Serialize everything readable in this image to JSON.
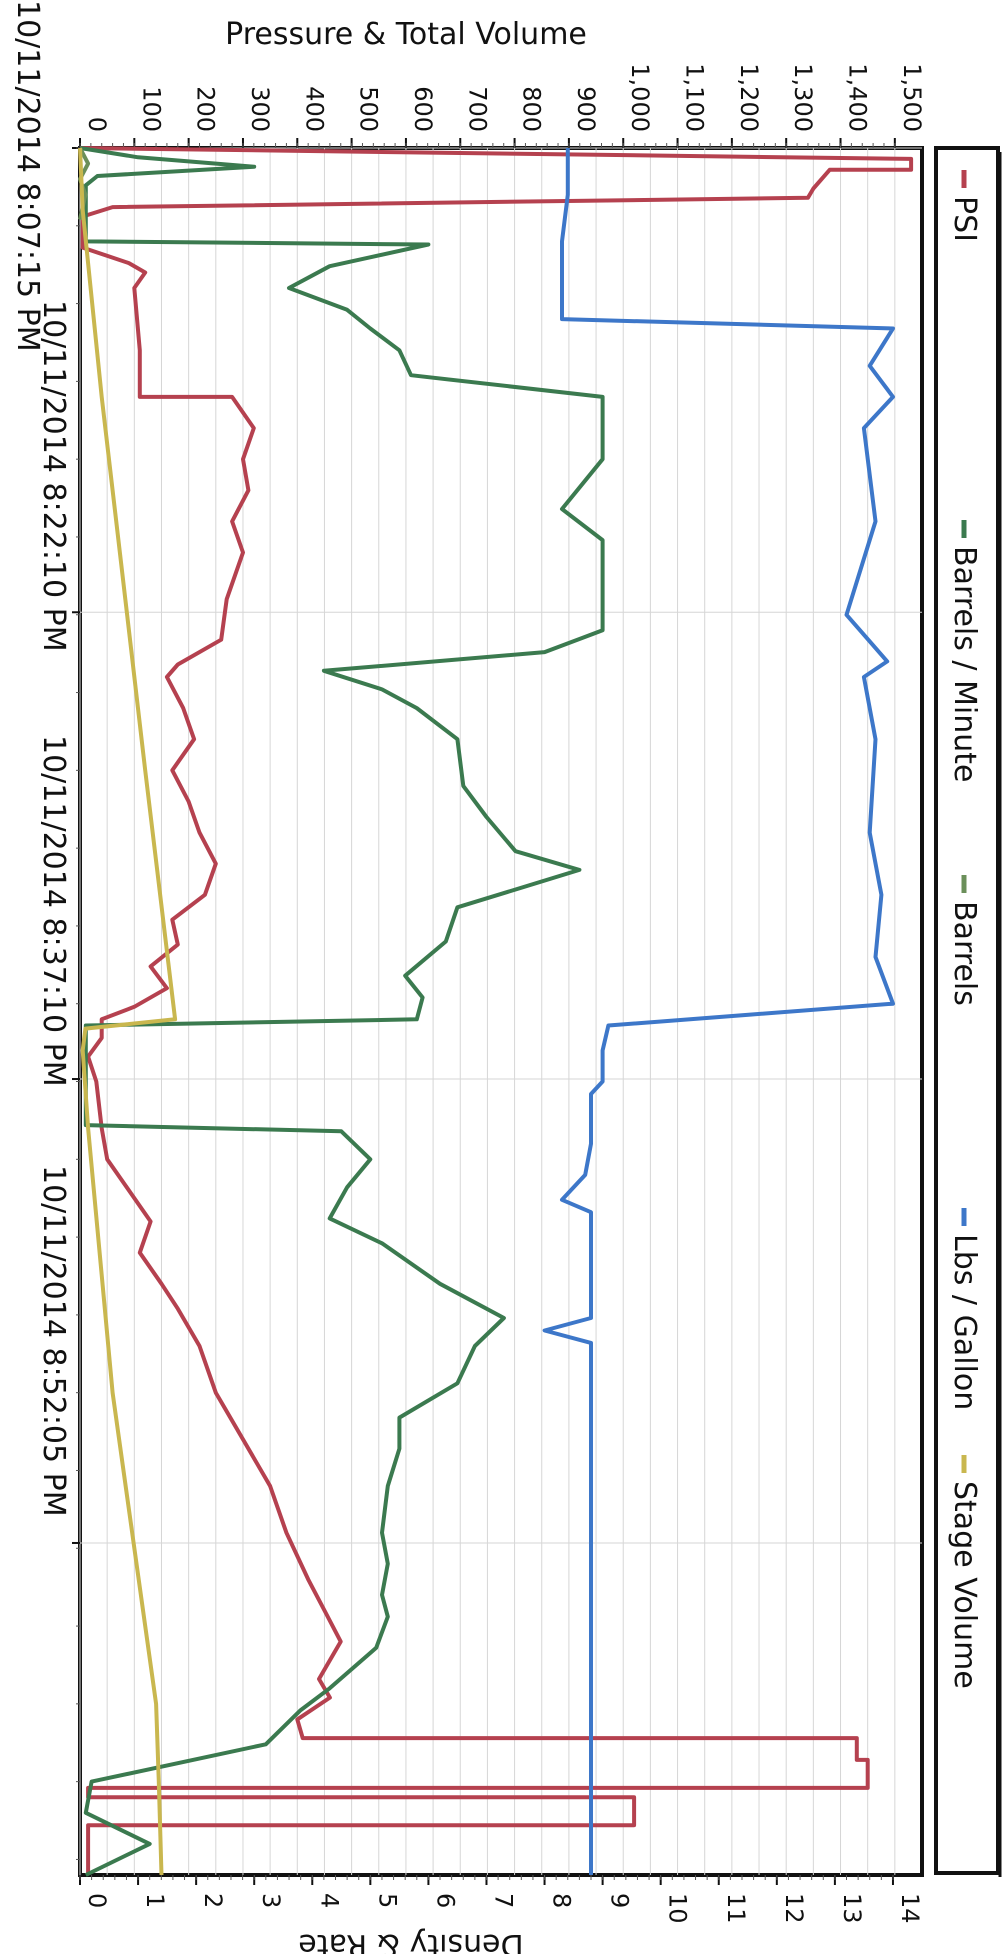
{
  "chart_data": {
    "type": "line",
    "orientation": "rotated 90 degrees clockwise",
    "left_axis_title": "Pressure & Total Volume",
    "left_axis_ticks": [
      "0",
      "100",
      "200",
      "300",
      "400",
      "500",
      "600",
      "700",
      "800",
      "900",
      "1,000",
      "1,100",
      "1,200",
      "1,300",
      "1,400",
      "1,500"
    ],
    "left_axis_range": [
      0,
      1550
    ],
    "right_axis_title": "Density & Rate",
    "right_axis_ticks": [
      "0",
      "1",
      "2",
      "3",
      "4",
      "5",
      "6",
      "7",
      "8",
      "9",
      "10",
      "11",
      "12",
      "13",
      "14"
    ],
    "right_axis_range": [
      0,
      14.5
    ],
    "time_ticks": [
      "10/11/2014 8:07:15 PM",
      "10/11/2014 8:22:10 PM",
      "10/11/2014 8:37:10 PM",
      "10/11/2014 8:52:05 PM"
    ],
    "time_range_minutes": [
      0,
      55.5
    ],
    "grid": true,
    "legend_position": "right",
    "series": [
      {
        "name": "PSI",
        "color": "#b5414f",
        "axis": "left",
        "points": [
          [
            0,
            0
          ],
          [
            0.35,
            1530
          ],
          [
            0.7,
            1530
          ],
          [
            0.7,
            1380
          ],
          [
            1.3,
            1350
          ],
          [
            1.6,
            1340
          ],
          [
            1.9,
            60
          ],
          [
            2.2,
            5
          ],
          [
            3.2,
            5
          ],
          [
            3.7,
            90
          ],
          [
            4.0,
            120
          ],
          [
            4.5,
            100
          ],
          [
            6.5,
            110
          ],
          [
            8.0,
            110
          ],
          [
            8.0,
            280
          ],
          [
            9.0,
            320
          ],
          [
            10.0,
            300
          ],
          [
            11.0,
            310
          ],
          [
            12.0,
            280
          ],
          [
            13.0,
            300
          ],
          [
            14.5,
            270
          ],
          [
            15.8,
            260
          ],
          [
            16.6,
            180
          ],
          [
            17.0,
            160
          ],
          [
            18.0,
            190
          ],
          [
            19.0,
            210
          ],
          [
            20.0,
            170
          ],
          [
            21.0,
            200
          ],
          [
            22.0,
            220
          ],
          [
            23.0,
            250
          ],
          [
            24.0,
            230
          ],
          [
            24.8,
            170
          ],
          [
            25.6,
            180
          ],
          [
            26.3,
            130
          ],
          [
            27.0,
            160
          ],
          [
            27.6,
            100
          ],
          [
            28.0,
            40
          ],
          [
            28.6,
            40
          ],
          [
            29.2,
            15
          ],
          [
            30.0,
            30
          ],
          [
            31.5,
            40
          ],
          [
            32.5,
            50
          ],
          [
            33.5,
            90
          ],
          [
            34.5,
            130
          ],
          [
            35.5,
            110
          ],
          [
            36.5,
            150
          ],
          [
            37.3,
            180
          ],
          [
            38.5,
            220
          ],
          [
            40.0,
            250
          ],
          [
            41.5,
            300
          ],
          [
            43.0,
            350
          ],
          [
            44.5,
            380
          ],
          [
            46.0,
            420
          ],
          [
            47.0,
            450
          ],
          [
            48.0,
            480
          ],
          [
            49.2,
            440
          ],
          [
            49.8,
            460
          ],
          [
            50.5,
            400
          ],
          [
            51.1,
            410
          ],
          [
            51.1,
            1430
          ],
          [
            51.8,
            1430
          ],
          [
            51.8,
            1450
          ],
          [
            52.7,
            1450
          ],
          [
            52.7,
            15
          ],
          [
            53.0,
            15
          ],
          [
            53.0,
            1020
          ],
          [
            53.9,
            1020
          ],
          [
            53.9,
            15
          ],
          [
            55.5,
            15
          ]
        ]
      },
      {
        "name": "Barrels / Minute",
        "color": "#3b7a4f",
        "axis": "right",
        "points": [
          [
            0,
            0
          ],
          [
            0.3,
            1.0
          ],
          [
            0.6,
            3.0
          ],
          [
            0.9,
            0.3
          ],
          [
            1.2,
            0.1
          ],
          [
            3.0,
            0.1
          ],
          [
            3.1,
            6.0
          ],
          [
            3.8,
            4.3
          ],
          [
            4.5,
            3.6
          ],
          [
            5.2,
            4.6
          ],
          [
            5.8,
            5.0
          ],
          [
            6.5,
            5.5
          ],
          [
            7.3,
            5.7
          ],
          [
            8.0,
            9.0
          ],
          [
            10.0,
            9.0
          ],
          [
            11.6,
            8.3
          ],
          [
            12.6,
            9.0
          ],
          [
            15.5,
            9.0
          ],
          [
            16.2,
            8.0
          ],
          [
            16.8,
            4.2
          ],
          [
            17.4,
            5.2
          ],
          [
            18.0,
            5.8
          ],
          [
            19.0,
            6.5
          ],
          [
            20.5,
            6.6
          ],
          [
            21.5,
            7.0
          ],
          [
            22.6,
            7.5
          ],
          [
            23.2,
            8.6
          ],
          [
            24.4,
            6.5
          ],
          [
            25.5,
            6.3
          ],
          [
            26.6,
            5.6
          ],
          [
            27.3,
            5.9
          ],
          [
            28.0,
            5.8
          ],
          [
            28.2,
            0.1
          ],
          [
            31.4,
            0.1
          ],
          [
            31.6,
            4.5
          ],
          [
            32.5,
            5.0
          ],
          [
            33.4,
            4.6
          ],
          [
            34.4,
            4.3
          ],
          [
            35.2,
            5.2
          ],
          [
            36.5,
            6.2
          ],
          [
            37.6,
            7.3
          ],
          [
            38.5,
            6.8
          ],
          [
            39.7,
            6.5
          ],
          [
            40.8,
            5.5
          ],
          [
            41.8,
            5.5
          ],
          [
            43.0,
            5.3
          ],
          [
            44.5,
            5.2
          ],
          [
            45.5,
            5.3
          ],
          [
            46.5,
            5.2
          ],
          [
            47.2,
            5.3
          ],
          [
            48.2,
            5.1
          ],
          [
            49.5,
            4.3
          ],
          [
            50.2,
            3.8
          ],
          [
            51.3,
            3.2
          ],
          [
            52.5,
            0.2
          ],
          [
            53.5,
            0.1
          ],
          [
            54.5,
            1.2
          ],
          [
            55.5,
            0.1
          ]
        ]
      },
      {
        "name": "Barrels",
        "color": "#6b8f5a",
        "axis": "left",
        "points": [
          [
            0,
            0
          ],
          [
            0.5,
            15
          ],
          [
            1.0,
            0
          ],
          [
            1.5,
            10
          ],
          [
            2.3,
            0
          ]
        ]
      },
      {
        "name": "Lbs / Gallon",
        "color": "#3d77c9",
        "axis": "right",
        "points": [
          [
            0,
            8.4
          ],
          [
            1.5,
            8.4
          ],
          [
            3.0,
            8.3
          ],
          [
            5.5,
            8.3
          ],
          [
            5.8,
            14.0
          ],
          [
            7.0,
            13.6
          ],
          [
            8.0,
            14.0
          ],
          [
            9.0,
            13.5
          ],
          [
            12.0,
            13.7
          ],
          [
            15.0,
            13.2
          ],
          [
            16.5,
            13.9
          ],
          [
            17.0,
            13.5
          ],
          [
            19.0,
            13.7
          ],
          [
            22.0,
            13.6
          ],
          [
            24.0,
            13.8
          ],
          [
            26.0,
            13.7
          ],
          [
            27.5,
            14.0
          ],
          [
            28.2,
            9.1
          ],
          [
            29.0,
            9.0
          ],
          [
            30.0,
            9.0
          ],
          [
            30.4,
            8.8
          ],
          [
            32.0,
            8.8
          ],
          [
            33.0,
            8.7
          ],
          [
            33.8,
            8.3
          ],
          [
            34.2,
            8.8
          ],
          [
            37.6,
            8.8
          ],
          [
            38.0,
            8.0
          ],
          [
            38.4,
            8.8
          ],
          [
            55.5,
            8.8
          ]
        ]
      },
      {
        "name": "Stage Volume",
        "color": "#c9b74f",
        "axis": "left",
        "points": [
          [
            0,
            0
          ],
          [
            2.0,
            5
          ],
          [
            8.0,
            40
          ],
          [
            14.0,
            80
          ],
          [
            20.0,
            120
          ],
          [
            28.0,
            175
          ],
          [
            28.3,
            10
          ],
          [
            29.0,
            5
          ],
          [
            31.5,
            15
          ],
          [
            40.0,
            60
          ],
          [
            50.0,
            140
          ],
          [
            52.5,
            145
          ],
          [
            55.5,
            150
          ]
        ]
      }
    ]
  }
}
